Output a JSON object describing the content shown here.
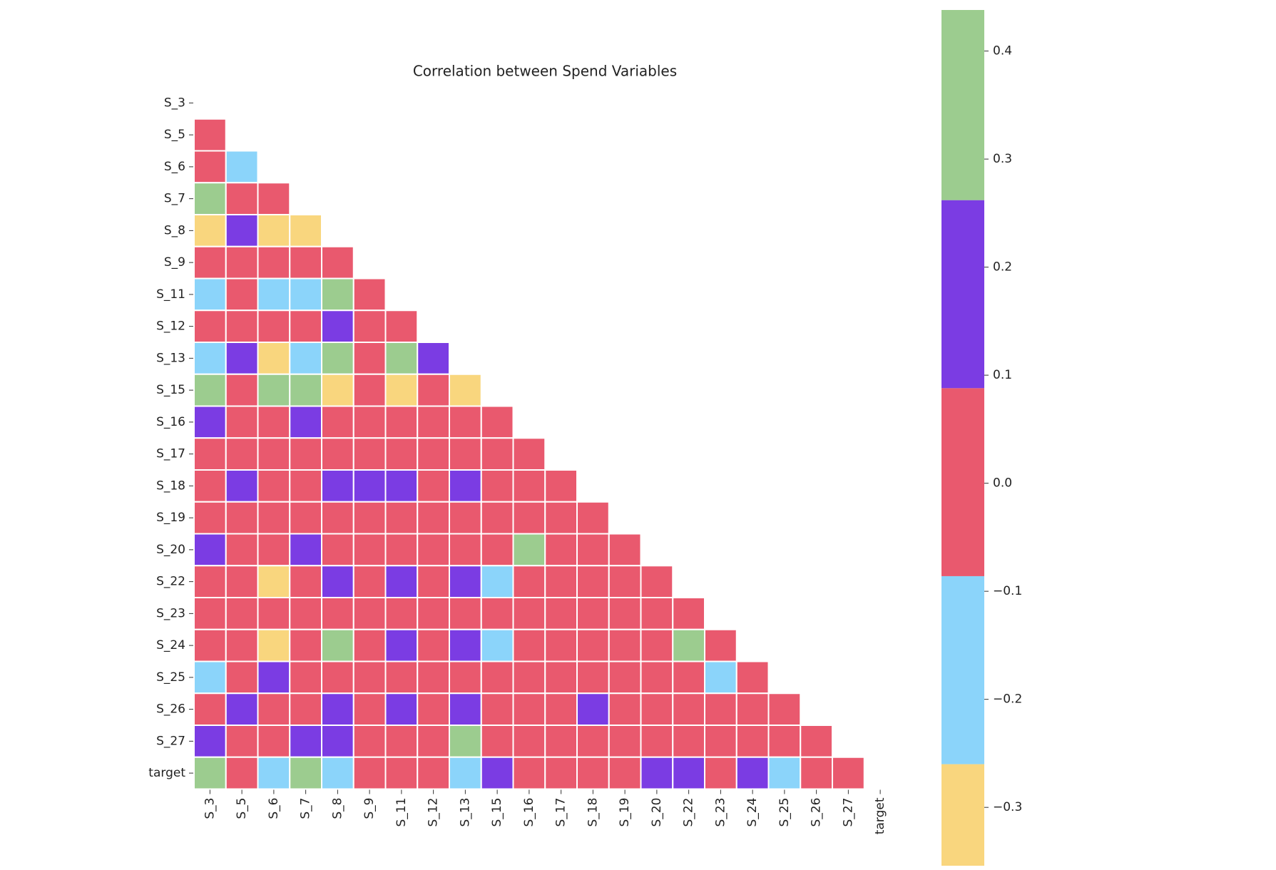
{
  "chart_data": {
    "type": "heatmap",
    "title": "Correlation between Spend Variables",
    "labels": [
      "S_3",
      "S_5",
      "S_6",
      "S_7",
      "S_8",
      "S_9",
      "S_11",
      "S_12",
      "S_13",
      "S_15",
      "S_16",
      "S_17",
      "S_18",
      "S_19",
      "S_20",
      "S_22",
      "S_23",
      "S_24",
      "S_25",
      "S_26",
      "S_27",
      "target"
    ],
    "values": [
      [],
      [
        0.02
      ],
      [
        0.03,
        -0.17
      ],
      [
        0.31,
        0.01,
        -0.02
      ],
      [
        -0.28,
        0.14,
        -0.31,
        -0.29
      ],
      [
        0.02,
        0.04,
        -0.01,
        0.03,
        0.05
      ],
      [
        -0.16,
        0.02,
        -0.18,
        -0.15,
        0.33,
        0.01
      ],
      [
        0.04,
        0.03,
        0.02,
        0.05,
        0.19,
        0.02,
        0.06
      ],
      [
        -0.14,
        0.17,
        -0.27,
        -0.13,
        0.29,
        0.03,
        0.34,
        0.16
      ],
      [
        0.3,
        0.01,
        0.32,
        0.35,
        -0.3,
        0.02,
        -0.33,
        0.04,
        -0.29
      ],
      [
        0.15,
        0.02,
        0.03,
        0.13,
        0.01,
        0.0,
        -0.01,
        0.02,
        0.05,
        0.03
      ],
      [
        0.01,
        0.02,
        0.0,
        0.03,
        -0.02,
        0.01,
        0.04,
        0.02,
        0.0,
        0.01,
        0.03
      ],
      [
        0.05,
        0.18,
        0.02,
        0.04,
        0.16,
        0.12,
        0.14,
        0.03,
        0.2,
        0.01,
        0.06,
        0.02
      ],
      [
        0.03,
        0.01,
        0.02,
        -0.01,
        0.04,
        0.02,
        0.03,
        0.01,
        0.05,
        0.0,
        0.02,
        0.04,
        0.03
      ],
      [
        0.17,
        0.02,
        0.01,
        0.15,
        0.03,
        0.04,
        0.02,
        0.05,
        0.03,
        0.01,
        0.3,
        0.02,
        0.04,
        0.06
      ],
      [
        0.04,
        0.02,
        -0.28,
        0.03,
        0.21,
        0.05,
        0.18,
        0.04,
        0.22,
        -0.12,
        0.06,
        0.03,
        0.07,
        0.05,
        0.08
      ],
      [
        0.02,
        0.03,
        0.01,
        0.02,
        0.04,
        0.03,
        0.02,
        0.01,
        0.03,
        0.02,
        0.04,
        0.05,
        0.02,
        0.03,
        0.04,
        0.06
      ],
      [
        0.03,
        0.02,
        -0.27,
        0.04,
        0.27,
        0.03,
        0.19,
        0.05,
        0.21,
        -0.11,
        0.04,
        0.02,
        0.06,
        0.03,
        0.05,
        0.36,
        0.04
      ],
      [
        -0.13,
        0.01,
        0.12,
        0.03,
        0.02,
        0.04,
        0.01,
        0.03,
        0.02,
        0.0,
        0.01,
        0.02,
        0.03,
        0.01,
        0.02,
        0.04,
        -0.14,
        0.03
      ],
      [
        0.05,
        0.16,
        0.02,
        0.03,
        0.18,
        0.04,
        0.15,
        0.03,
        0.19,
        0.02,
        0.04,
        0.03,
        0.13,
        0.05,
        0.06,
        0.07,
        0.05,
        0.04,
        0.03
      ],
      [
        0.14,
        0.03,
        0.02,
        0.12,
        0.17,
        0.04,
        0.03,
        0.02,
        0.31,
        0.01,
        0.03,
        0.02,
        0.04,
        0.05,
        0.03,
        0.06,
        0.04,
        0.05,
        0.03,
        0.07
      ],
      [
        0.27,
        0.01,
        -0.15,
        0.29,
        -0.12,
        0.02,
        0.03,
        0.01,
        -0.16,
        0.19,
        0.02,
        0.04,
        0.03,
        0.05,
        0.13,
        0.14,
        0.03,
        0.15,
        -0.1,
        0.04,
        0.02
      ]
    ],
    "colorbar": {
      "lim": [
        -0.354,
        0.438
      ],
      "bounds": [
        -0.26,
        -0.086,
        0.088,
        0.262
      ],
      "colors": [
        "#f9d67e",
        "#8bd4fa",
        "#e9596e",
        "#7b3ce3",
        "#9ccc8f"
      ],
      "ticks": [
        {
          "value": -0.3,
          "label": "−0.3"
        },
        {
          "value": -0.2,
          "label": "−0.2"
        },
        {
          "value": -0.1,
          "label": "−0.1"
        },
        {
          "value": 0,
          "label": "0.0"
        },
        0.1,
        0.2,
        0.3,
        0.4
      ]
    }
  }
}
